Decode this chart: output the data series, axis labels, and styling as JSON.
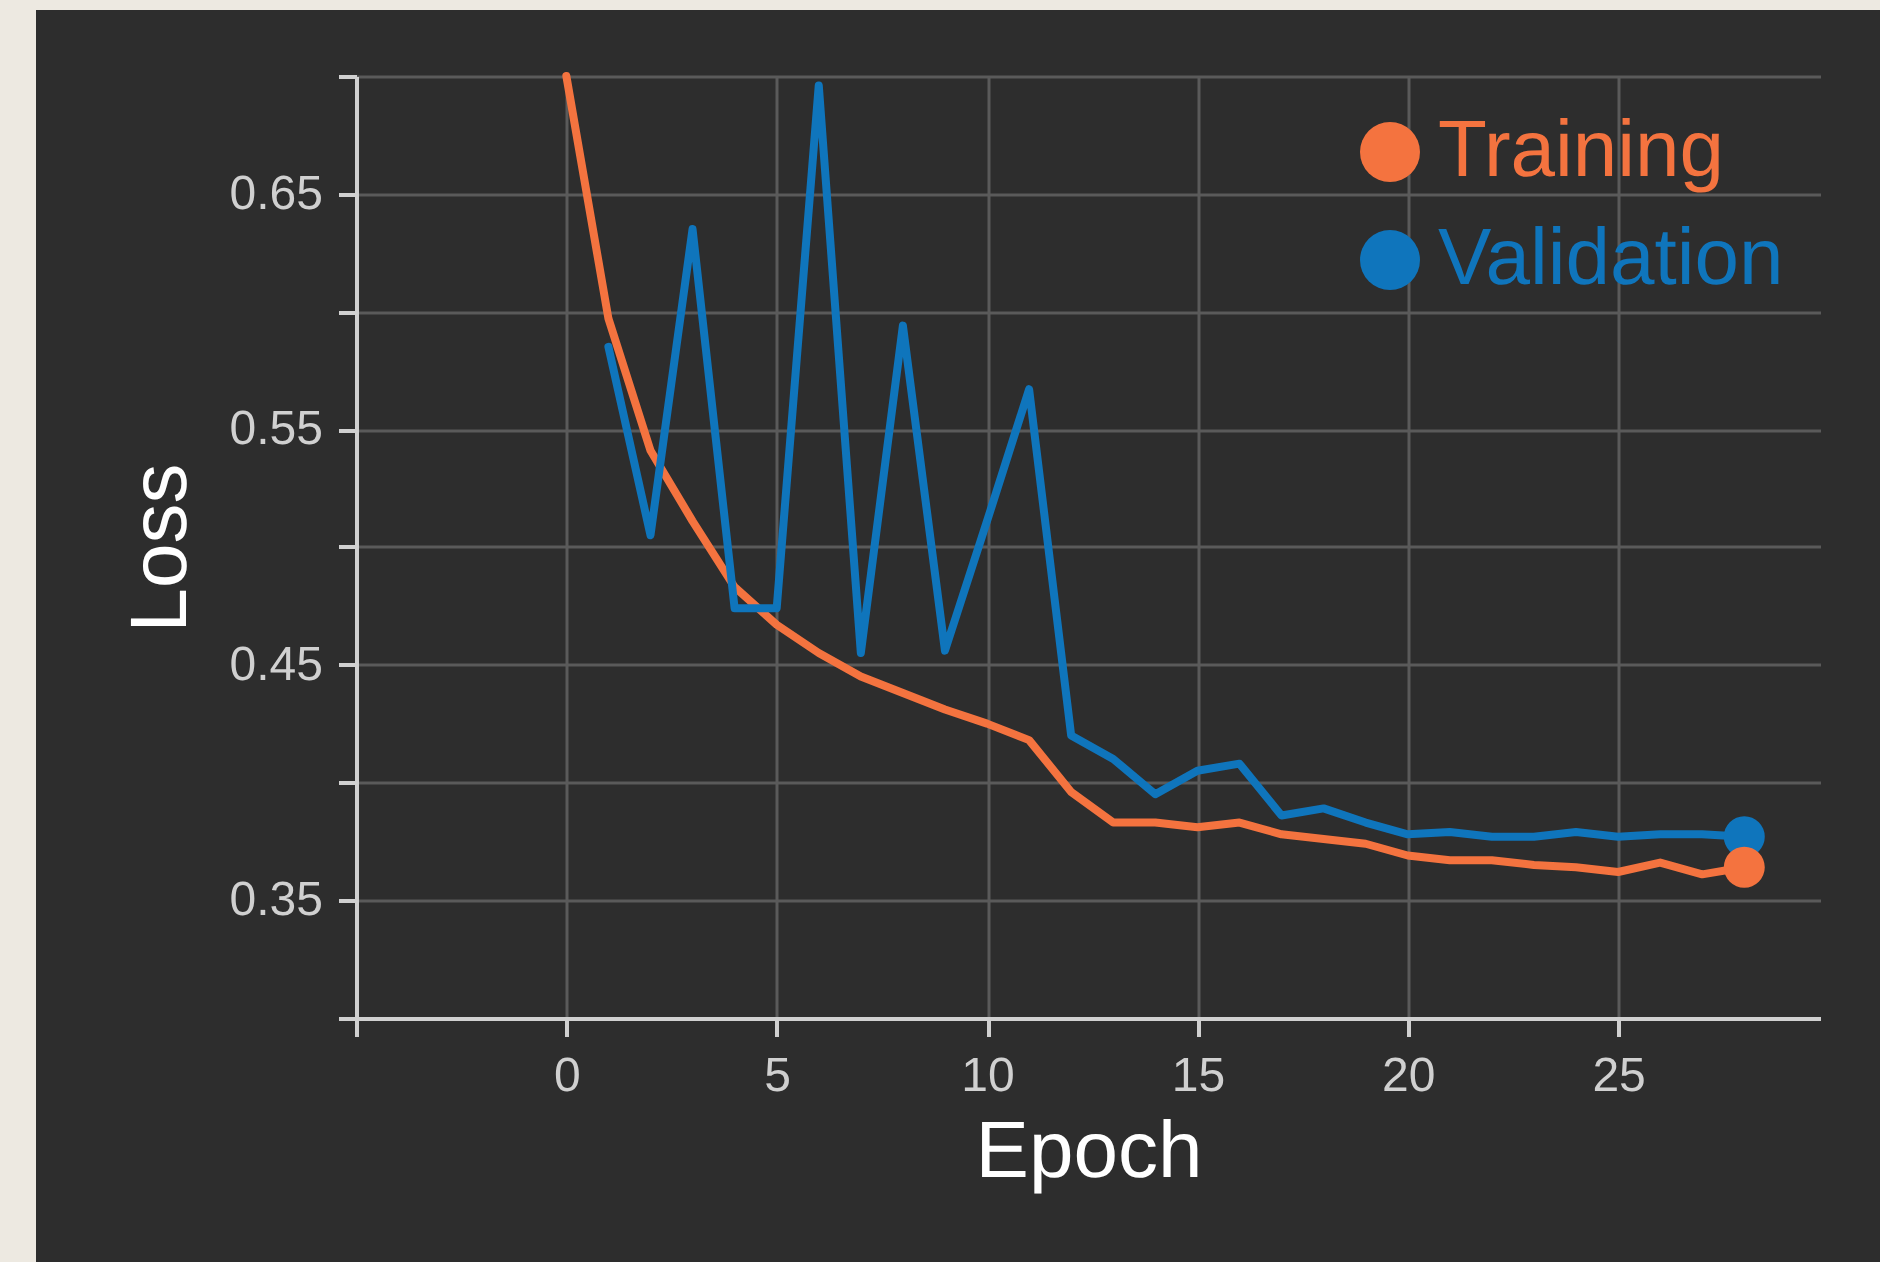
{
  "chart_data": {
    "type": "line",
    "xlabel": "Epoch",
    "ylabel": "Loss",
    "xlim": [
      -5,
      29.8
    ],
    "xticks": [
      {
        "value": -5,
        "label": null
      },
      0,
      5,
      10,
      15,
      20,
      25
    ],
    "ylim": [
      0.3,
      0.7
    ],
    "yticks": [
      {
        "value": 0.3,
        "label": null
      },
      0.35,
      {
        "value": 0.4,
        "label": null
      },
      0.45,
      {
        "value": 0.5,
        "label": null
      },
      0.55,
      {
        "value": 0.6,
        "label": null
      },
      0.65,
      {
        "value": 0.7,
        "label": null
      }
    ],
    "grid": true,
    "legend": "top right",
    "series": [
      {
        "name": "Training",
        "color": "#f4733f",
        "x": [
          0,
          1,
          2,
          3,
          4,
          5,
          6,
          7,
          8,
          9,
          10,
          11,
          12,
          13,
          14,
          15,
          16,
          17,
          18,
          19,
          20,
          21,
          22,
          23,
          24,
          25,
          26,
          27,
          28
        ],
        "values": [
          0.7,
          0.597,
          0.541,
          0.511,
          0.483,
          0.467,
          0.455,
          0.445,
          0.438,
          0.431,
          0.425,
          0.418,
          0.396,
          0.383,
          0.383,
          0.381,
          0.383,
          0.378,
          0.376,
          0.374,
          0.369,
          0.367,
          0.367,
          0.365,
          0.364,
          0.362,
          0.366,
          0.361,
          0.364
        ]
      },
      {
        "name": "Validation",
        "color": "#0f75bc",
        "x": [
          1,
          2,
          3,
          4,
          5,
          6,
          7,
          8,
          9,
          10,
          11,
          12,
          13,
          14,
          15,
          16,
          17,
          18,
          19,
          20,
          21,
          22,
          23,
          24,
          25,
          26,
          27,
          28
        ],
        "values": [
          0.585,
          0.505,
          0.635,
          0.474,
          0.474,
          0.696,
          0.455,
          0.594,
          0.456,
          0.511,
          0.567,
          0.42,
          0.41,
          0.395,
          0.405,
          0.408,
          0.386,
          0.389,
          0.383,
          0.378,
          0.379,
          0.377,
          0.377,
          0.379,
          0.377,
          0.378,
          0.378,
          0.377
        ]
      },
      {
        "type": "scatter",
        "color": "#0f75bc",
        "x": [
          28
        ],
        "values": [
          0.377
        ]
      },
      {
        "type": "scatter",
        "color": "#f4733f",
        "x": [
          28
        ],
        "values": [
          0.364
        ]
      }
    ]
  }
}
